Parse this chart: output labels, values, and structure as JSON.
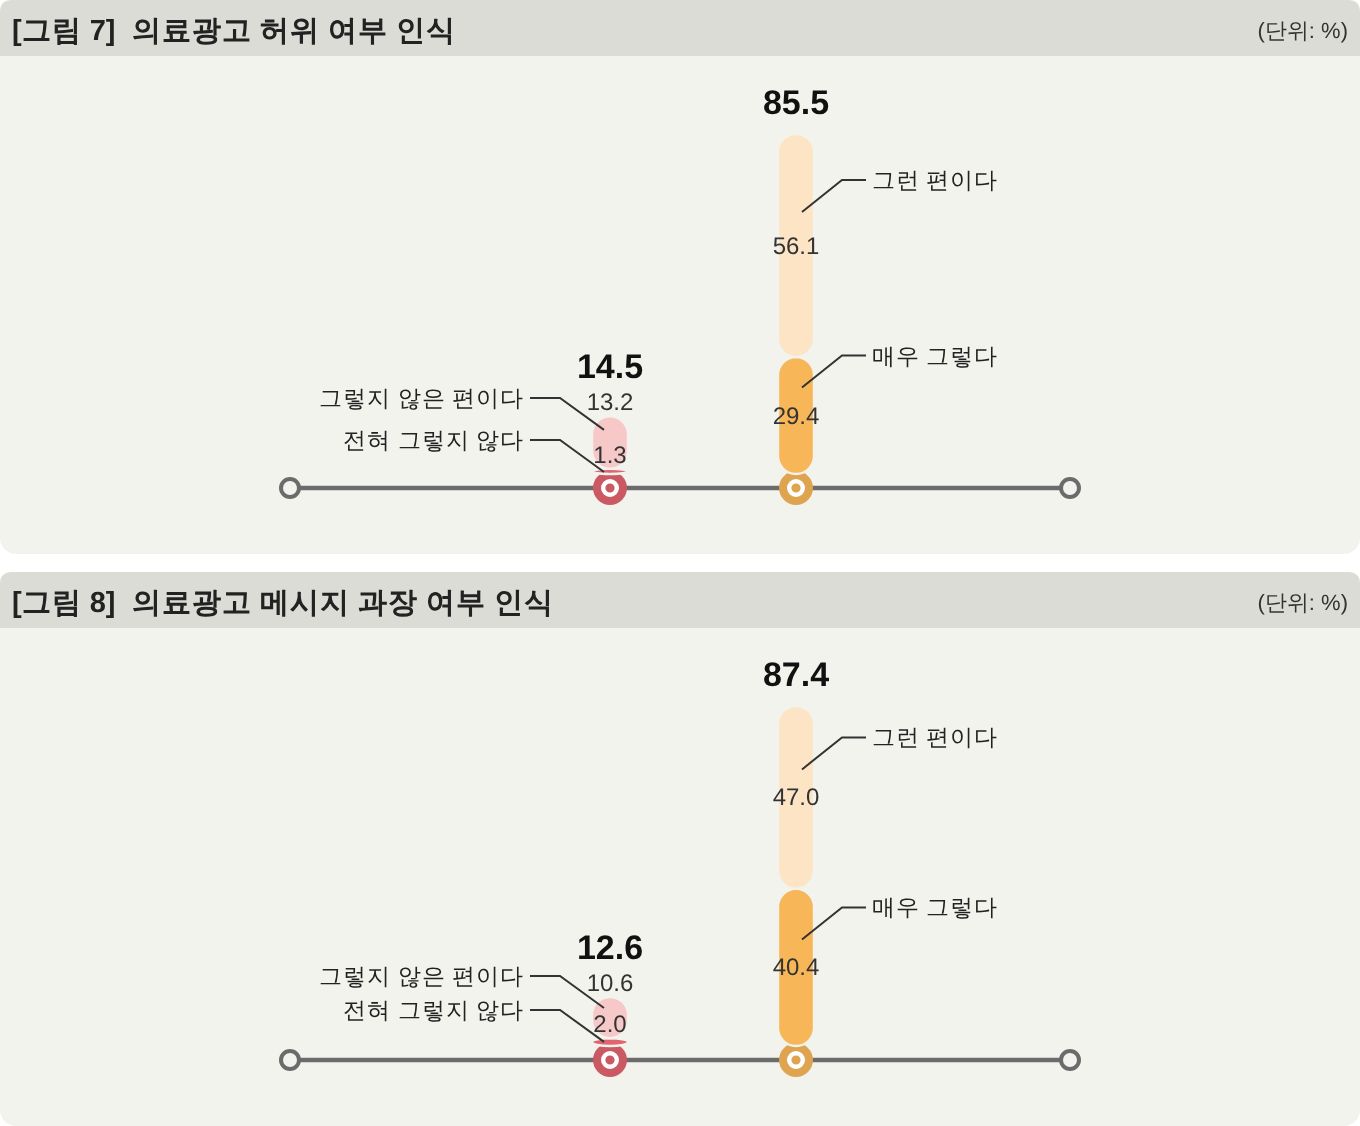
{
  "chart_data": [
    {
      "type": "bar",
      "title": "[그림 7]  의료광고 허위 여부 인식",
      "annotations": [
        "(단위: %)"
      ],
      "categories": [
        null,
        null
      ],
      "stacked": true,
      "series": [
        {
          "name": "전혀 그렇지 않다",
          "color": "#e0636f",
          "values": [
            1.3,
            null
          ],
          "value_labels": [
            "1.3",
            null
          ]
        },
        {
          "name": "그렇지 않은 편이다",
          "color": "#f6c8c8",
          "values": [
            13.2,
            null
          ],
          "value_labels": [
            "13.2",
            null
          ]
        },
        {
          "name": "매우 그렇다",
          "color": "#f7b658",
          "values": [
            null,
            29.4
          ],
          "value_labels": [
            null,
            "29.4"
          ]
        },
        {
          "name": "그런 편이다",
          "color": "#fde4c4",
          "values": [
            null,
            56.1
          ],
          "value_labels": [
            null,
            "56.1"
          ]
        }
      ],
      "totals": [
        "14.5",
        "85.5"
      ]
    },
    {
      "type": "bar",
      "title": "[그림 8]  의료광고 메시지 과장 여부 인식",
      "annotations": [
        "(단위: %)"
      ],
      "categories": [
        null,
        null
      ],
      "stacked": true,
      "series": [
        {
          "name": "전혀 그렇지 않다",
          "color": "#e0636f",
          "values": [
            2.0,
            null
          ],
          "value_labels": [
            "2.0",
            null
          ]
        },
        {
          "name": "그렇지 않은 편이다",
          "color": "#f6c8c8",
          "values": [
            10.6,
            null
          ],
          "value_labels": [
            "10.6",
            null
          ]
        },
        {
          "name": "매우 그렇다",
          "color": "#f7b658",
          "values": [
            null,
            40.4
          ],
          "value_labels": [
            null,
            "40.4"
          ]
        },
        {
          "name": "그런 편이다",
          "color": "#fde4c4",
          "values": [
            null,
            47.0
          ],
          "value_labels": [
            null,
            "47.0"
          ]
        }
      ],
      "totals": [
        "12.6",
        "87.4"
      ]
    }
  ]
}
